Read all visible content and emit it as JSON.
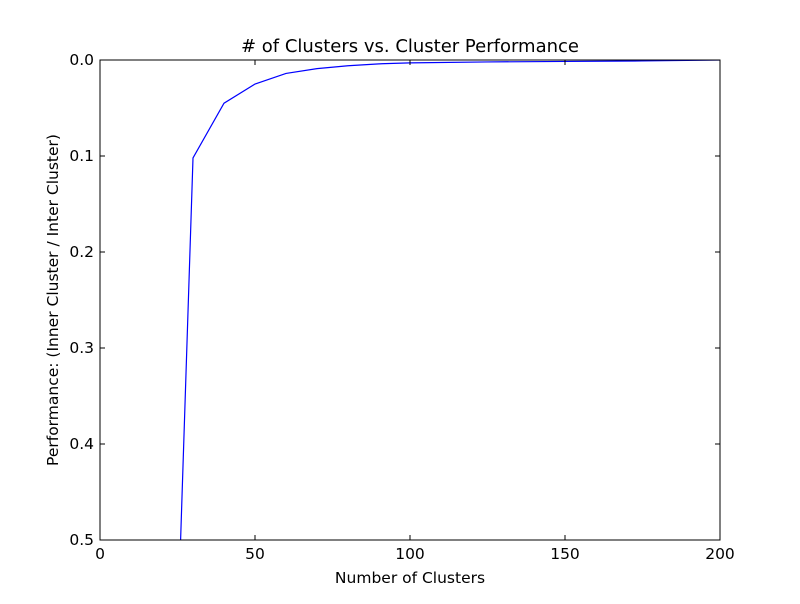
{
  "chart_data": {
    "type": "line",
    "title": "# of Clusters vs. Cluster Performance",
    "xlabel": "Number of Clusters",
    "ylabel": "Performance: (Inner Cluster / Inter Cluster)",
    "xlim": [
      0,
      200
    ],
    "ylim": [
      0.5,
      0.0
    ],
    "y_inverted": true,
    "grid": false,
    "x_ticks": [
      0,
      50,
      100,
      150,
      200
    ],
    "x_tick_labels": [
      "0",
      "50",
      "100",
      "150",
      "200"
    ],
    "y_ticks": [
      0.0,
      0.1,
      0.2,
      0.3,
      0.4,
      0.5
    ],
    "y_tick_labels": [
      "0.0",
      "0.1",
      "0.2",
      "0.3",
      "0.4",
      "0.5"
    ],
    "series": [
      {
        "color": "#0000ff",
        "x": [
          26,
          30,
          40,
          50,
          60,
          70,
          80,
          90,
          100,
          125,
          150,
          175,
          200
        ],
        "y": [
          0.5,
          0.102,
          0.045,
          0.025,
          0.014,
          0.009,
          0.006,
          0.004,
          0.003,
          0.002,
          0.0015,
          0.001,
          0.0
        ]
      }
    ]
  }
}
